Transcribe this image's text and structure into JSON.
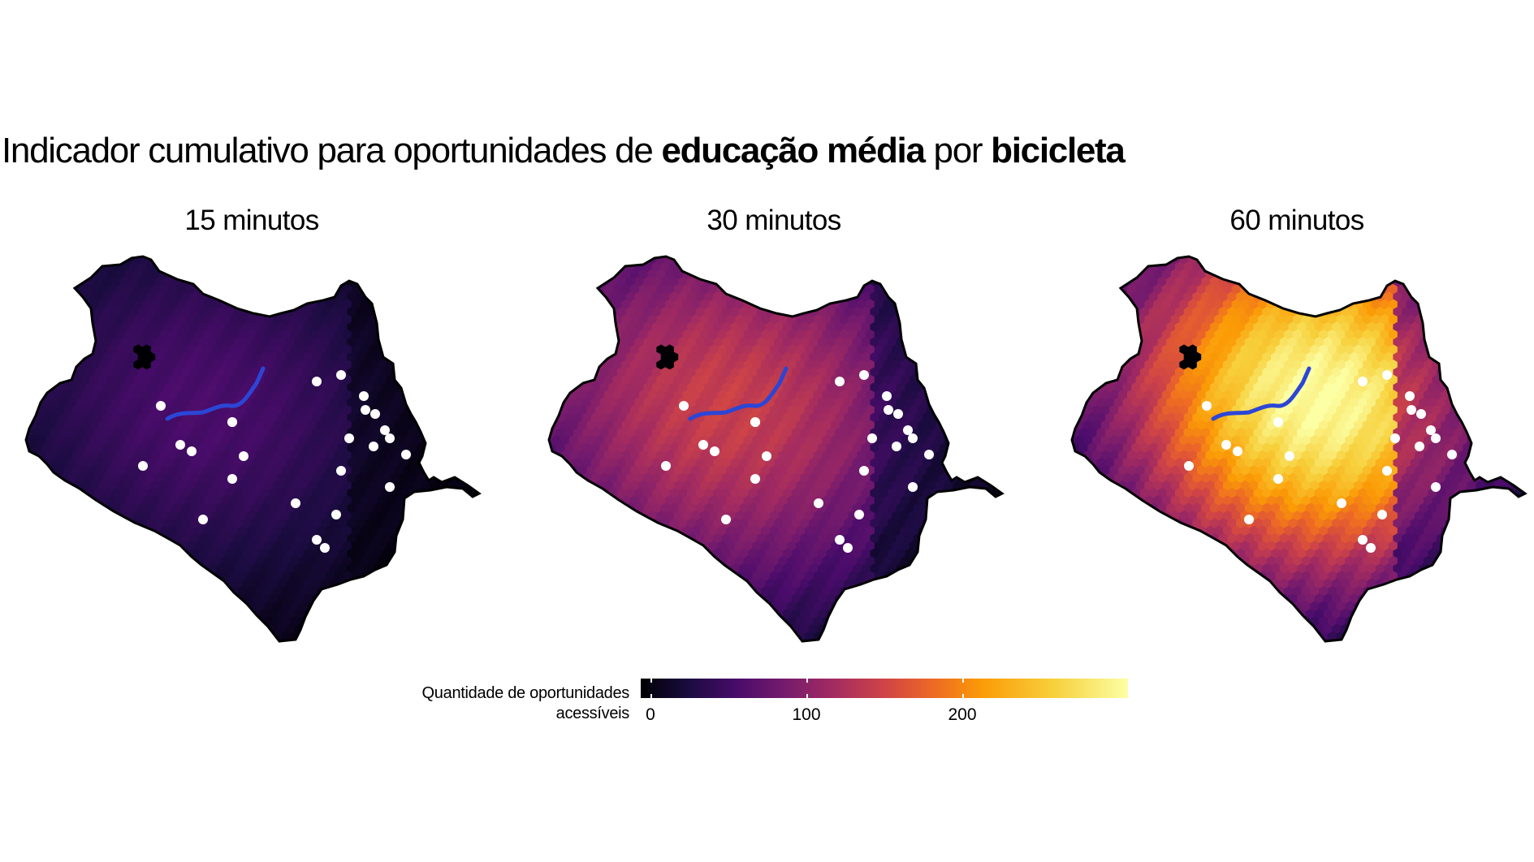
{
  "title": {
    "prefix": "Indicador cumulativo para oportunidades de ",
    "bold1": "educação média",
    "middle": " por ",
    "bold2": "bicicleta"
  },
  "panels": [
    {
      "label": "15 minutos",
      "peak_value": 60
    },
    {
      "label": "30 minutos",
      "peak_value": 145
    },
    {
      "label": "60 minutos",
      "peak_value": 300
    }
  ],
  "legend": {
    "title_line1": "Quantidade de oportunidades",
    "title_line2": "acessíveis",
    "ticks": [
      "0",
      "100",
      "200"
    ],
    "tick_values": [
      0,
      100,
      200
    ],
    "range": [
      0,
      300
    ],
    "palette": "inferno"
  },
  "colors": {
    "route": "#2b46d6",
    "background": "#ffffff",
    "outline": "#000000"
  }
}
